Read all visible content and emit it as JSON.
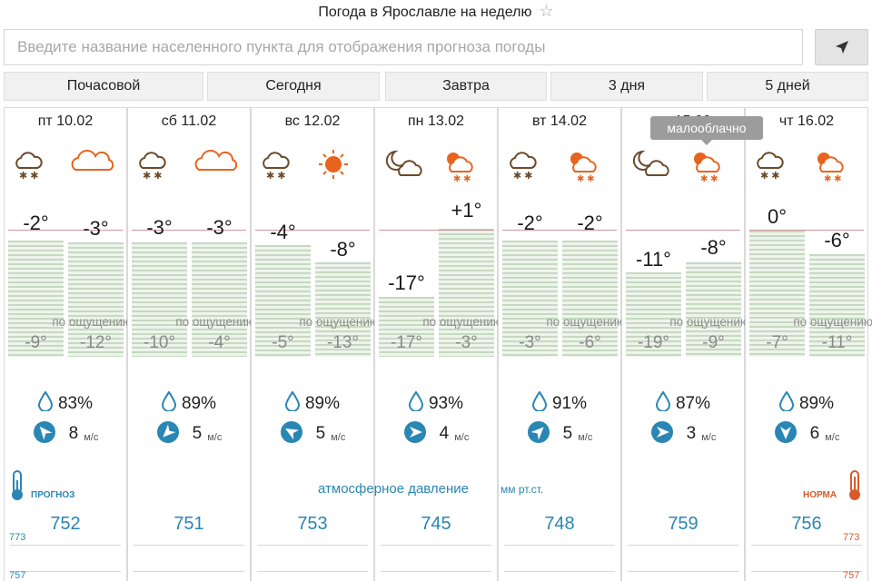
{
  "title": "Погода в Ярославле на неделю",
  "search": {
    "placeholder": "Введите название населенного пункта для отображения прогноза погоды"
  },
  "tabs": [
    "Почасовой",
    "Сегодня",
    "Завтра",
    "3 дня",
    "5 дней"
  ],
  "feel_label": "по ощущению",
  "tooltip": "малооблачно",
  "pressure": {
    "label": "атмосферное давление",
    "unit": "мм рт.ст."
  },
  "legend": {
    "left": "ПРОГНОЗ",
    "right": "НОРМА"
  },
  "scale": {
    "left_1": "773",
    "left_2": "757",
    "right_1": "773",
    "right_2": "757"
  },
  "days": [
    {
      "date": "пт 10.02",
      "day_t": "-2°",
      "night_t": "-3°",
      "feel_day": "-9°",
      "feel_night": "-12°",
      "humidity": "83%",
      "wind": "8",
      "wind_unit": "м/с",
      "pressure": "752"
    },
    {
      "date": "сб 11.02",
      "day_t": "-3°",
      "night_t": "-3°",
      "feel_day": "-10°",
      "feel_night": "-4°",
      "humidity": "89%",
      "wind": "5",
      "wind_unit": "м/с",
      "pressure": "751"
    },
    {
      "date": "вс 12.02",
      "day_t": "-4°",
      "night_t": "-8°",
      "feel_day": "-5°",
      "feel_night": "-13°",
      "humidity": "89%",
      "wind": "5",
      "wind_unit": "м/с",
      "pressure": "753"
    },
    {
      "date": "пн 13.02",
      "day_t": "-17°",
      "night_t": "+1°",
      "feel_day": "-17°",
      "feel_night": "-3°",
      "humidity": "93%",
      "wind": "4",
      "wind_unit": "м/с",
      "pressure": "745"
    },
    {
      "date": "вт 14.02",
      "day_t": "-2°",
      "night_t": "-2°",
      "feel_day": "-3°",
      "feel_night": "-6°",
      "humidity": "91%",
      "wind": "5",
      "wind_unit": "м/с",
      "pressure": "748"
    },
    {
      "date": "ср 15.02",
      "day_t": "-11°",
      "night_t": "-8°",
      "feel_day": "-19°",
      "feel_night": "-9°",
      "humidity": "87%",
      "wind": "3",
      "wind_unit": "м/с",
      "pressure": "759"
    },
    {
      "date": "чт 16.02",
      "day_t": "0°",
      "night_t": "-6°",
      "feel_day": "-7°",
      "feel_night": "-11°",
      "humidity": "89%",
      "wind": "6",
      "wind_unit": "м/с",
      "pressure": "756"
    }
  ],
  "colors": {
    "accent": "#2a86b3",
    "warm": "#e8641e",
    "icon_brown": "#6b4a2a"
  }
}
